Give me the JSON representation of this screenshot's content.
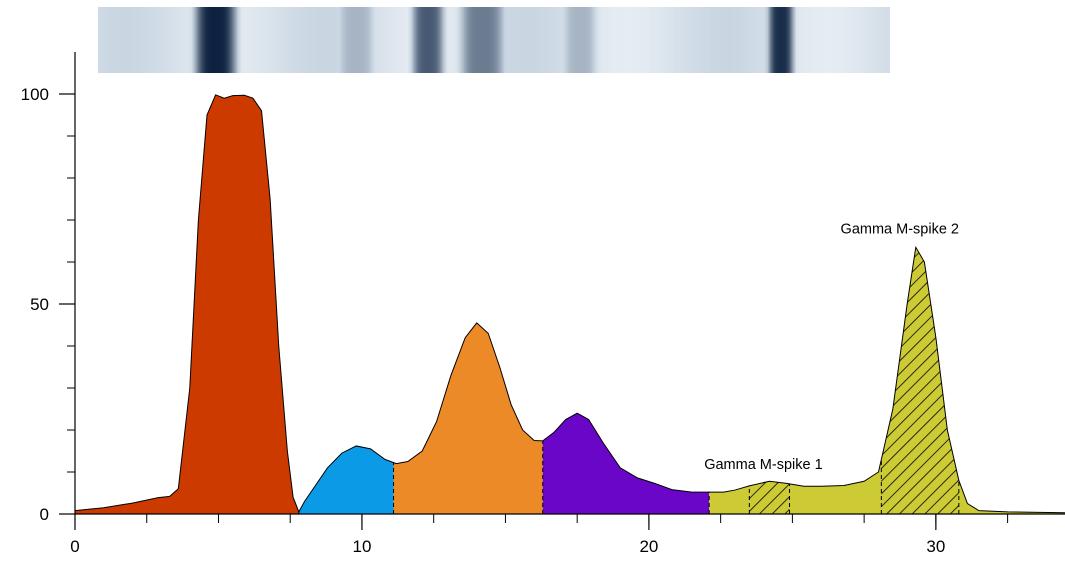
{
  "chart_data": {
    "type": "area",
    "title": "",
    "xlabel": "",
    "ylabel": "",
    "xlim": [
      0,
      34.5
    ],
    "ylim": [
      0,
      110
    ],
    "x_ticks": [
      0,
      10,
      20,
      30
    ],
    "x_minor_step": 2.5,
    "y_ticks": [
      0,
      50,
      100
    ],
    "y_minor_step": 10,
    "grid": false,
    "profile": [
      [
        0,
        0.8
      ],
      [
        1,
        1.5
      ],
      [
        2,
        2.6
      ],
      [
        2.9,
        3.9
      ],
      [
        3.3,
        4.2
      ],
      [
        3.6,
        6
      ],
      [
        4.0,
        30
      ],
      [
        4.3,
        70
      ],
      [
        4.6,
        95
      ],
      [
        4.9,
        99.8
      ],
      [
        5.2,
        99
      ],
      [
        5.5,
        99.6
      ],
      [
        5.9,
        99.7
      ],
      [
        6.2,
        99
      ],
      [
        6.5,
        96
      ],
      [
        6.8,
        75
      ],
      [
        7.1,
        40
      ],
      [
        7.4,
        15
      ],
      [
        7.6,
        4
      ],
      [
        7.8,
        0.5
      ],
      [
        8.0,
        3
      ],
      [
        8.4,
        7
      ],
      [
        8.8,
        11
      ],
      [
        9.3,
        14.5
      ],
      [
        9.8,
        16.2
      ],
      [
        10.3,
        15.5
      ],
      [
        10.8,
        13
      ],
      [
        11.2,
        12
      ],
      [
        11.6,
        12.5
      ],
      [
        12.1,
        15
      ],
      [
        12.6,
        22
      ],
      [
        13.1,
        33
      ],
      [
        13.6,
        42
      ],
      [
        14.0,
        45.5
      ],
      [
        14.4,
        43
      ],
      [
        14.8,
        35
      ],
      [
        15.2,
        26
      ],
      [
        15.6,
        20
      ],
      [
        16.0,
        17.5
      ],
      [
        16.3,
        17.4
      ],
      [
        16.7,
        19.5
      ],
      [
        17.1,
        22.5
      ],
      [
        17.5,
        24
      ],
      [
        17.9,
        22.5
      ],
      [
        18.4,
        17
      ],
      [
        19.0,
        11
      ],
      [
        19.6,
        8.6
      ],
      [
        20.2,
        7.3
      ],
      [
        20.8,
        5.8
      ],
      [
        21.5,
        5.2
      ],
      [
        22.1,
        5.2
      ],
      [
        22.6,
        5.2
      ],
      [
        23.0,
        5.7
      ],
      [
        23.5,
        6.7
      ],
      [
        24.2,
        7.8
      ],
      [
        24.8,
        7.3
      ],
      [
        25.4,
        6.6
      ],
      [
        26.0,
        6.6
      ],
      [
        26.8,
        6.8
      ],
      [
        27.5,
        7.8
      ],
      [
        28.0,
        10
      ],
      [
        28.5,
        25
      ],
      [
        29.0,
        50
      ],
      [
        29.3,
        63.5
      ],
      [
        29.6,
        60
      ],
      [
        30.0,
        42
      ],
      [
        30.4,
        20
      ],
      [
        30.8,
        8
      ],
      [
        31.1,
        2.5
      ],
      [
        31.5,
        0.8
      ],
      [
        32.5,
        0.5
      ],
      [
        34.5,
        0.3
      ]
    ],
    "fractions": [
      {
        "start": 0,
        "end": 7.8,
        "color": "#cc3a00"
      },
      {
        "start": 7.8,
        "end": 11.1,
        "color": "#0b9be6"
      },
      {
        "start": 11.1,
        "end": 16.3,
        "color": "#ec8a27"
      },
      {
        "start": 16.3,
        "end": 22.1,
        "color": "#6a06c8"
      },
      {
        "start": 22.1,
        "end": 34.5,
        "color": "#cdcb35"
      }
    ],
    "mspikes": [
      {
        "start": 23.5,
        "end": 24.9
      },
      {
        "start": 28.1,
        "end": 30.8
      }
    ],
    "annotations": [
      {
        "text": "Gamma M-spike 1",
        "x": 24.2,
        "y": 7.8
      },
      {
        "text": "Gamma M-spike 2",
        "x": 29.3,
        "y": 63.5
      }
    ],
    "gel_strip": {
      "x_start": 0.8,
      "x_end": 28.4,
      "bands": [
        {
          "center": 4.9,
          "width": 1.3,
          "intensity": 1.0
        },
        {
          "center": 9.8,
          "width": 1.2,
          "intensity": 0.35
        },
        {
          "center": 12.3,
          "width": 1.0,
          "intensity": 0.75
        },
        {
          "center": 14.2,
          "width": 1.4,
          "intensity": 0.6
        },
        {
          "center": 17.6,
          "width": 1.1,
          "intensity": 0.35
        },
        {
          "center": 24.6,
          "width": 0.8,
          "intensity": 0.95
        }
      ],
      "background": "#c9d6e2",
      "band_color": "#0d2240"
    }
  }
}
